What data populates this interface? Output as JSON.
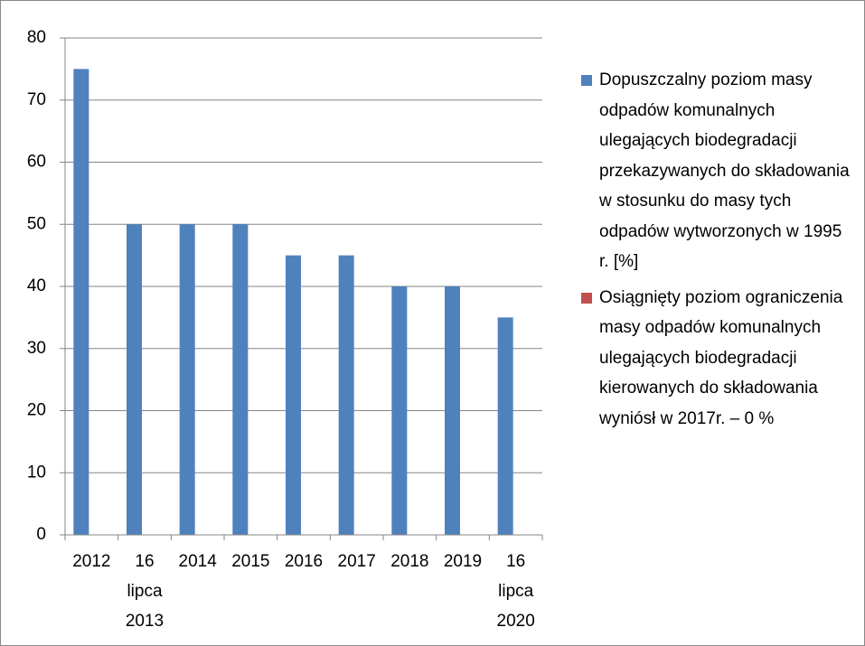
{
  "chart_data": {
    "type": "bar",
    "categories": [
      "2012",
      "16 lipca 2013",
      "2014",
      "2015",
      "2016",
      "2017",
      "2018",
      "2019",
      "16 lipca 2020"
    ],
    "series": [
      {
        "name": "Dopuszczalny poziom masy odpadów komunalnych ulegających biodegradacji przekazywanych do składowania w stosunku do masy tych odpadów wytworzonych w 1995 r. [%]",
        "color": "#4f81bd",
        "values": [
          75,
          50,
          50,
          50,
          45,
          45,
          40,
          40,
          35
        ]
      },
      {
        "name": "Osiągnięty   poziom ograniczenia masy odpadów komunalnych ulegających biodegradacji kierowanych do składowania wyniósł  w 2017r. – 0 %",
        "color": "#c0504d",
        "values": [
          null,
          null,
          null,
          null,
          null,
          0,
          null,
          null,
          null
        ]
      }
    ],
    "ylim": [
      0,
      80
    ],
    "yticks": [
      0,
      10,
      20,
      30,
      40,
      50,
      60,
      70,
      80
    ],
    "grid": true,
    "legend": "right"
  }
}
